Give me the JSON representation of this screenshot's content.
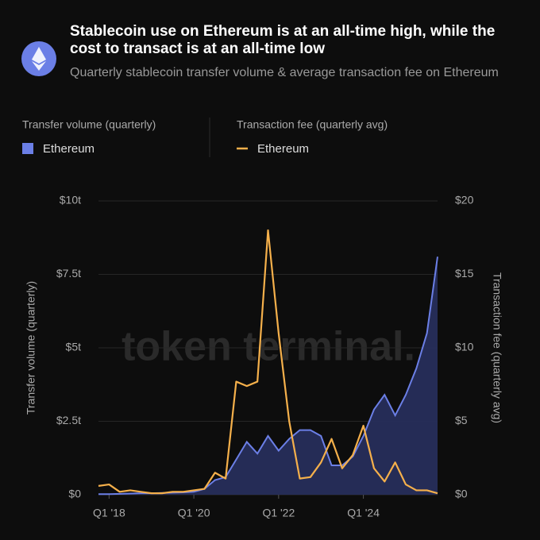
{
  "chart_data": {
    "type": "line",
    "title": "Stablecoin use on Ethereum is at an all-time high, while the cost to transact is at an all-time low",
    "subtitle": "Quarterly stablecoin transfer volume & average transaction fee on Ethereum",
    "legend_groups": [
      "Transfer volume (quarterly)",
      "Transaction fee (quarterly avg)"
    ],
    "watermark": "token terminal.",
    "ylabel": "Transfer volume (quarterly)",
    "y2label": "Transaction fee (quarterly avg)",
    "categories": [
      null,
      "Q1 '18",
      null,
      null,
      null,
      null,
      null,
      null,
      null,
      "Q1 '20",
      null,
      null,
      null,
      null,
      null,
      null,
      null,
      "Q1 '22",
      null,
      null,
      null,
      null,
      null,
      null,
      null,
      "Q1 '24",
      null,
      null,
      null,
      null,
      null,
      null,
      null
    ],
    "series": [
      {
        "name": "Ethereum",
        "type": "area",
        "color": "#6b7fe6",
        "values": [
          0.02,
          0.02,
          0.03,
          0.04,
          0.05,
          0.05,
          0.06,
          0.07,
          0.08,
          0.1,
          0.2,
          0.5,
          0.6,
          1.2,
          1.8,
          1.4,
          2.0,
          1.5,
          1.9,
          2.2,
          2.2,
          2.0,
          1.0,
          1.0,
          1.3,
          2.0,
          2.9,
          3.4,
          2.7,
          3.4,
          4.3,
          5.5,
          8.1
        ]
      },
      {
        "name": "Ethereum",
        "type": "line",
        "axis": "y2",
        "color": "#f5b04b",
        "values": [
          0.6,
          0.7,
          0.2,
          0.3,
          0.2,
          0.1,
          0.1,
          0.2,
          0.2,
          0.3,
          0.4,
          1.5,
          1.1,
          7.7,
          7.4,
          7.7,
          18.0,
          11.0,
          5.0,
          1.1,
          1.2,
          2.2,
          3.8,
          1.8,
          2.7,
          4.7,
          1.8,
          0.9,
          2.2,
          0.7,
          0.3,
          0.3,
          0.1
        ]
      }
    ],
    "ylim": [
      0,
      10
    ],
    "yticks": [
      {
        "value": 0,
        "label": "$0"
      },
      {
        "value": 2.5,
        "label": "$2.5t"
      },
      {
        "value": 5,
        "label": "$5t"
      },
      {
        "value": 7.5,
        "label": "$7.5t"
      },
      {
        "value": 10,
        "label": "$10t"
      }
    ],
    "y2lim": [
      0,
      20
    ],
    "y2ticks": [
      {
        "value": 0,
        "label": "$0"
      },
      {
        "value": 5,
        "label": "$5"
      },
      {
        "value": 10,
        "label": "$10"
      },
      {
        "value": 15,
        "label": "$15"
      },
      {
        "value": 20,
        "label": "$20"
      }
    ],
    "grid": true
  }
}
